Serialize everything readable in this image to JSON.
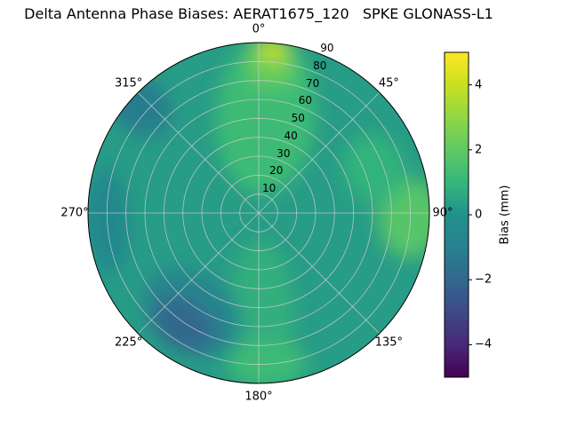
{
  "title": "Delta Antenna Phase Biases: AERAT1675_120   SPKE GLONASS-L1",
  "polar": {
    "angular_labels": [
      "0°",
      "45°",
      "90°",
      "135°",
      "180°",
      "225°",
      "270°",
      "315°"
    ],
    "radial_labels": [
      "10",
      "20",
      "30",
      "40",
      "50",
      "60",
      "70",
      "80",
      "90"
    ]
  },
  "colorbar": {
    "label": "Bias (mm)",
    "tick_labels": [
      "4",
      "2",
      "0",
      "−2",
      "−4"
    ]
  },
  "chart_data": {
    "type": "heatmap",
    "projection": "polar",
    "title": "Delta Antenna Phase Biases: AERAT1675_120   SPKE GLONASS-L1",
    "angular_ticks_deg": [
      0,
      45,
      90,
      135,
      180,
      225,
      270,
      315
    ],
    "radial_ticks": [
      10,
      20,
      30,
      40,
      50,
      60,
      70,
      80,
      90
    ],
    "value_label": "Bias (mm)",
    "value_range": [
      -5,
      5
    ],
    "colorbar_ticks": [
      4,
      2,
      0,
      -2,
      -4
    ],
    "colormap": "viridis",
    "colormap_stops": [
      "#440154",
      "#482878",
      "#3e4989",
      "#31688e",
      "#26828e",
      "#21918c",
      "#35b779",
      "#5ec962",
      "#90d743",
      "#c8e020",
      "#fde725"
    ],
    "background_bias_mm": 0.3,
    "regions": [
      {
        "azimuth_deg": 4,
        "radius": 52,
        "bias_mm": 1.2,
        "tangential_halfwidth": 26,
        "radial_halfwidth": 42
      },
      {
        "azimuth_deg": 5,
        "radius": 77,
        "bias_mm": 2.2,
        "tangential_halfwidth": 13,
        "radial_halfwidth": 10
      },
      {
        "azimuth_deg": 5,
        "radius": 87,
        "bias_mm": 3.8,
        "tangential_halfwidth": 8,
        "radial_halfwidth": 7
      },
      {
        "azimuth_deg": 92,
        "radius": 80,
        "bias_mm": 1.8,
        "tangential_halfwidth": 21,
        "radial_halfwidth": 17
      },
      {
        "azimuth_deg": 69,
        "radius": 65,
        "bias_mm": 0.9,
        "tangential_halfwidth": 19,
        "radial_halfwidth": 16
      },
      {
        "azimuth_deg": 178,
        "radius": 52,
        "bias_mm": 0.8,
        "tangential_halfwidth": 17,
        "radial_halfwidth": 38
      },
      {
        "azimuth_deg": 177,
        "radius": 80,
        "bias_mm": 1.2,
        "tangential_halfwidth": 21,
        "radial_halfwidth": 12
      },
      {
        "azimuth_deg": 214,
        "radius": 63,
        "bias_mm": -0.8,
        "tangential_halfwidth": 28,
        "radial_halfwidth": 21
      },
      {
        "azimuth_deg": 214,
        "radius": 71,
        "bias_mm": -2.0,
        "tangential_halfwidth": 18,
        "radial_halfwidth": 13
      },
      {
        "azimuth_deg": 312,
        "radius": 84,
        "bias_mm": -1.2,
        "tangential_halfwidth": 14,
        "radial_halfwidth": 18
      },
      {
        "azimuth_deg": 267,
        "radius": 80,
        "bias_mm": -0.6,
        "tangential_halfwidth": 28,
        "radial_halfwidth": 12
      }
    ]
  }
}
